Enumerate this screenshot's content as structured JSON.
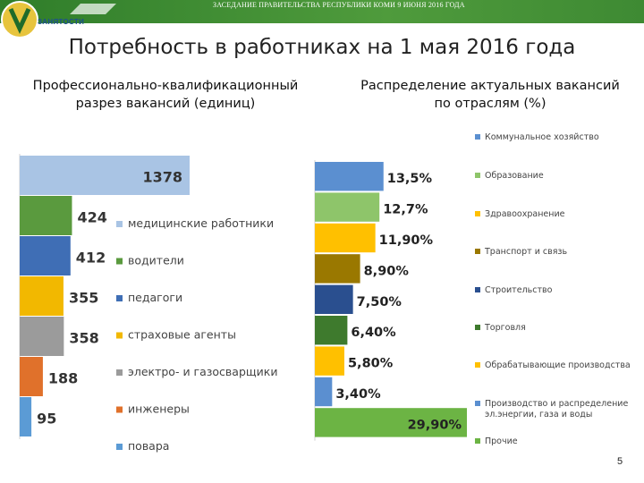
{
  "header": {
    "banner_text": "ЗАСЕДАНИЕ ПРАВИТЕЛЬСТВА РЕСПУБЛИКИ КОМИ 9 ИЮНЯ 2016 ГОДА",
    "logo_text": "ЗАНЯТОСТИ"
  },
  "title": "Потребность в работниках на 1 мая 2016 года",
  "page_number": "5",
  "chart_data": [
    {
      "type": "bar",
      "orientation": "horizontal",
      "title": "Профессионально-квалификационный разрез вакансий (единиц)",
      "categories": [
        "медицинские работники",
        "водители",
        "педагоги",
        "страховые агенты",
        "электро- и газосварщики",
        "инженеры",
        "повара"
      ],
      "values": [
        1378,
        424,
        412,
        355,
        358,
        188,
        95
      ],
      "labels": [
        "1378",
        "424",
        "412",
        "355",
        "358",
        "188",
        "95"
      ],
      "colors": [
        "#a9c4e4",
        "#5a9a3e",
        "#3f6eb5",
        "#f2b800",
        "#9b9b9b",
        "#e0712b",
        "#5b9bd5"
      ],
      "xlim": [
        0,
        1378
      ],
      "legend": "right"
    },
    {
      "type": "bar",
      "orientation": "horizontal",
      "title": "Распределение актуальных вакансий по отраслям (%)",
      "categories": [
        "Коммунальное хозяйство",
        "Образование",
        "Здравоохранение",
        "Транспорт и связь",
        "Строительство",
        "Торговля",
        "Обрабатывающие производства",
        "Производство и распределение эл.энергии, газа и воды",
        "Прочие"
      ],
      "values": [
        13.5,
        12.7,
        11.9,
        8.9,
        7.5,
        6.4,
        5.8,
        3.4,
        29.9
      ],
      "labels": [
        "13,5%",
        "12,7%",
        "11,90%",
        "8,90%",
        "7,50%",
        "6,40%",
        "5,80%",
        "3,40%",
        "29,90%"
      ],
      "colors": [
        "#5b8fd0",
        "#8ec56a",
        "#ffc000",
        "#9a7800",
        "#2a4f8f",
        "#3e7a2d",
        "#ffc000",
        "#5b8fd0",
        "#6cb444"
      ],
      "xlim": [
        0,
        29.9
      ],
      "legend": "right"
    }
  ]
}
